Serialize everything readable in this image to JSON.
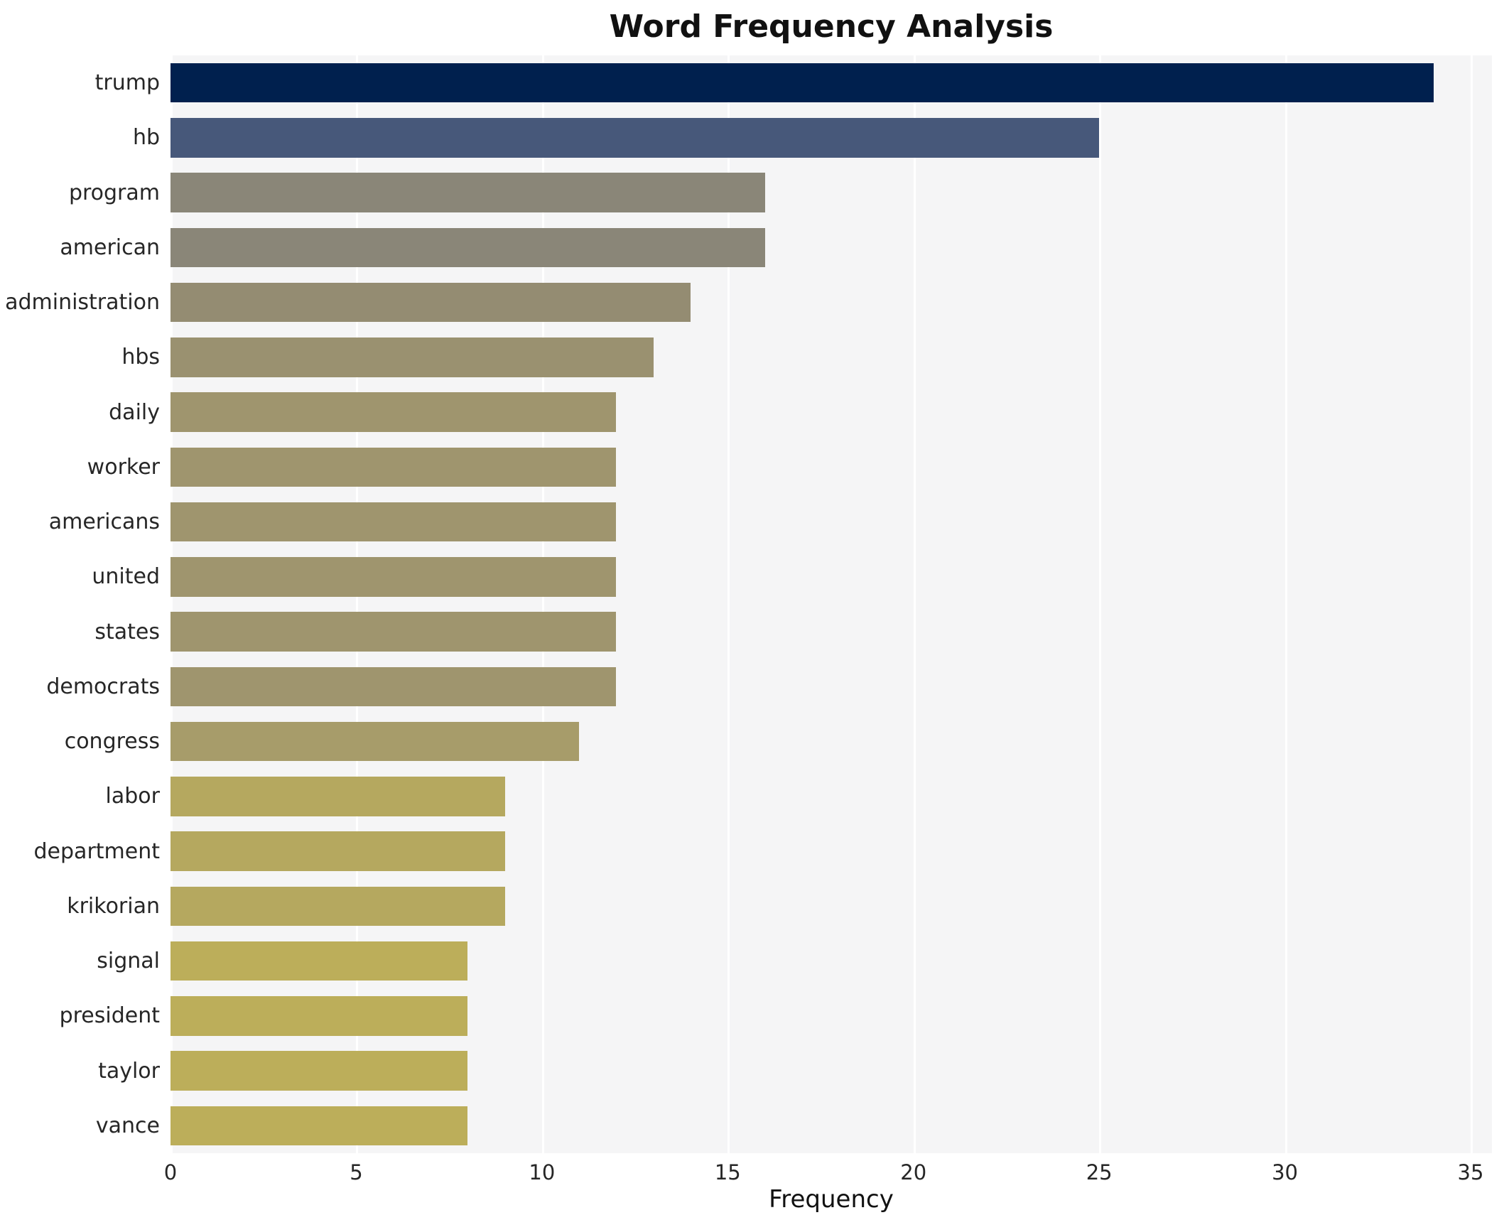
{
  "chart_data": {
    "type": "bar",
    "orientation": "horizontal",
    "title": "Word Frequency Analysis",
    "xlabel": "Frequency",
    "ylabel": "",
    "xlim": [
      0,
      35
    ],
    "xticks": [
      0,
      5,
      10,
      15,
      20,
      25,
      30,
      35
    ],
    "grid": true,
    "legend": "none",
    "plot_bg_color": "#f5f5f6",
    "gridline_color": "#ffffff",
    "categories": [
      "trump",
      "hb",
      "program",
      "american",
      "administration",
      "hbs",
      "daily",
      "worker",
      "americans",
      "united",
      "states",
      "democrats",
      "congress",
      "labor",
      "department",
      "krikorian",
      "signal",
      "president",
      "taylor",
      "vance"
    ],
    "values": [
      34,
      25,
      16,
      16,
      14,
      13,
      12,
      12,
      12,
      12,
      12,
      12,
      11,
      9,
      9,
      9,
      8,
      8,
      8,
      8
    ],
    "bar_colors": [
      "#00204e",
      "#47587a",
      "#8a8678",
      "#8a8678",
      "#948c72",
      "#9a9170",
      "#9f956e",
      "#9f956e",
      "#9f956e",
      "#9f956e",
      "#9f956e",
      "#9f956e",
      "#a79c6a",
      "#b5a85f",
      "#b5a85f",
      "#b5a85f",
      "#bcae5a",
      "#bcae5a",
      "#bcae5a",
      "#bcae5a"
    ]
  }
}
